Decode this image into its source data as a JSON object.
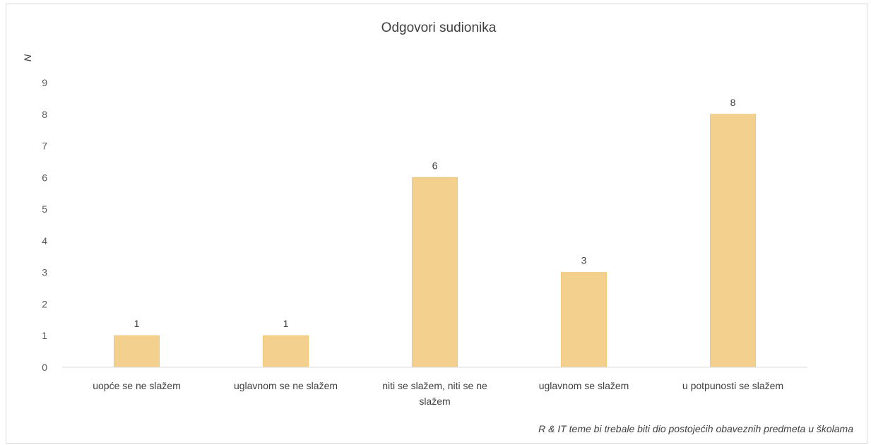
{
  "chart_data": {
    "type": "bar",
    "title": "Odgovori sudionika",
    "ylabel": "N",
    "xlabel": "R & IT teme bi trebale biti dio postojećih obaveznih predmeta u školama",
    "categories": [
      [
        "uopće se ne slažem"
      ],
      [
        "uglavnom se ne slažem"
      ],
      [
        "niti se slažem, niti se ne",
        "slažem"
      ],
      [
        "uglavnom se slažem"
      ],
      [
        "u potpunosti se slažem"
      ]
    ],
    "values": [
      1,
      1,
      6,
      3,
      8
    ],
    "ylim": [
      0,
      9
    ],
    "yticks": [
      0,
      1,
      2,
      3,
      4,
      5,
      6,
      7,
      8,
      9
    ],
    "grid": false,
    "legend": "none",
    "data_labels": true,
    "colors": {
      "bar_fill": "#f4d08f",
      "bar_stroke": "#f0c878",
      "axis": "#d9d9d9",
      "text": "#404040"
    }
  }
}
